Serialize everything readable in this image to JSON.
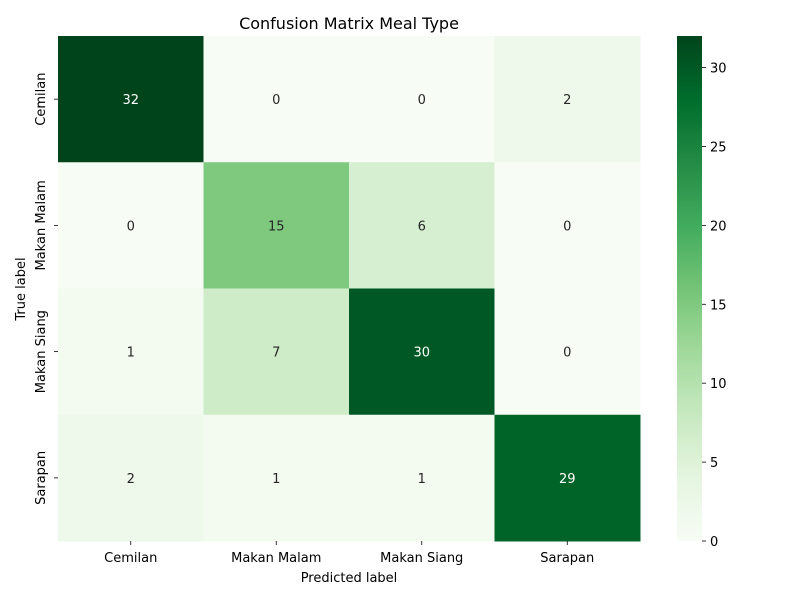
{
  "chart_data": {
    "type": "heatmap",
    "title": "Confusion Matrix Meal Type",
    "xlabel": "Predicted label",
    "ylabel": "True label",
    "x_categories": [
      "Cemilan",
      "Makan Malam",
      "Makan Siang",
      "Sarapan"
    ],
    "y_categories": [
      "Cemilan",
      "Makan Malam",
      "Makan Siang",
      "Sarapan"
    ],
    "values": [
      [
        32,
        0,
        0,
        2
      ],
      [
        0,
        15,
        6,
        0
      ],
      [
        1,
        7,
        30,
        0
      ],
      [
        2,
        1,
        1,
        29
      ]
    ],
    "value_labels": [
      [
        "32",
        "0",
        "0",
        "2"
      ],
      [
        "0",
        "15",
        "6",
        "0"
      ],
      [
        "1",
        "7",
        "30",
        "0"
      ],
      [
        "2",
        "1",
        "1",
        "29"
      ]
    ],
    "colorbar": {
      "min": 0,
      "max": 32,
      "ticks": [
        0,
        5,
        10,
        15,
        20,
        25,
        30
      ],
      "tick_labels": [
        "0",
        "5",
        "10",
        "15",
        "20",
        "25",
        "30"
      ]
    },
    "colormap": "Greens",
    "colors": [
      "#f7fcf5",
      "#e5f5e0",
      "#c7e9c0",
      "#a1d99b",
      "#74c476",
      "#41ab5d",
      "#238b45",
      "#006d2c",
      "#00441b"
    ]
  }
}
